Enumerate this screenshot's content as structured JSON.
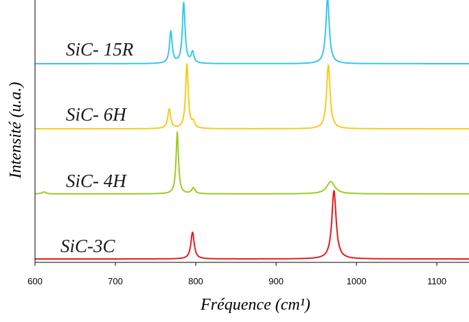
{
  "chart_data": {
    "type": "line",
    "title": "",
    "xlabel": "Fréquence (cm¹)",
    "ylabel": "Intensité (u.a.)",
    "xlim": [
      600,
      1140
    ],
    "xticks": [
      600,
      700,
      800,
      900,
      1000,
      1100
    ],
    "y_ticks_shown": false,
    "grid": false,
    "legend": "none",
    "series": [
      {
        "name": "SiC-3C",
        "color": "#e31b1b",
        "baseline": 0.0,
        "peaks": [
          {
            "x": 796,
            "height": 0.41,
            "width": 2.5
          },
          {
            "x": 972,
            "height": 1.05,
            "width": 3.2
          }
        ]
      },
      {
        "name": "SiC- 4H",
        "color": "#9ccc1f",
        "baseline": 1.0,
        "peaks": [
          {
            "x": 611,
            "height": 0.03,
            "width": 3
          },
          {
            "x": 777,
            "height": 0.95,
            "width": 1.8
          },
          {
            "x": 797,
            "height": 0.09,
            "width": 2.5
          },
          {
            "x": 968,
            "height": 0.19,
            "width": 6
          }
        ]
      },
      {
        "name": "SiC- 6H",
        "color": "#f7cb1a",
        "baseline": 2.0,
        "peaks": [
          {
            "x": 767,
            "height": 0.3,
            "width": 2.2
          },
          {
            "x": 789,
            "height": 0.99,
            "width": 2
          },
          {
            "x": 797,
            "height": 0.09,
            "width": 2
          },
          {
            "x": 965,
            "height": 0.98,
            "width": 2.6
          }
        ]
      },
      {
        "name": "SiC- 15R",
        "color": "#35c6ef",
        "baseline": 3.0,
        "peaks": [
          {
            "x": 769,
            "height": 0.49,
            "width": 2
          },
          {
            "x": 785,
            "height": 0.93,
            "width": 2
          },
          {
            "x": 796,
            "height": 0.17,
            "width": 2
          },
          {
            "x": 964,
            "height": 1.0,
            "width": 2.6
          }
        ]
      }
    ]
  }
}
